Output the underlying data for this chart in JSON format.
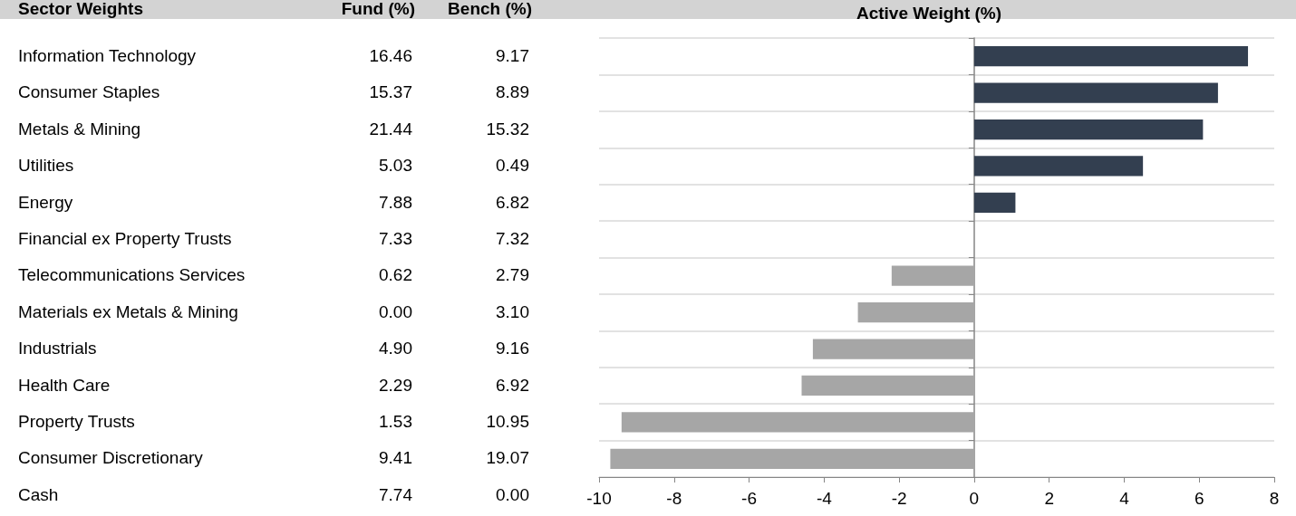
{
  "chart_data": [
    {
      "type": "other",
      "title": "Sector Weights",
      "categories": [
        "Information Technology",
        "Consumer Staples",
        "Metals & Mining",
        "Utilities",
        "Energy",
        "Financial ex Property Trusts",
        "Telecommunications Services",
        "Materials ex Metals & Mining",
        "Industrials",
        "Health Care",
        "Property Trusts",
        "Consumer Discretionary",
        "Cash"
      ],
      "series": [
        {
          "name": "Fund (%)",
          "values": [
            16.46,
            15.37,
            21.44,
            5.03,
            7.88,
            7.33,
            0.62,
            0.0,
            4.9,
            2.29,
            1.53,
            9.41,
            7.74
          ],
          "value_labels": [
            "16.46",
            "15.37",
            "21.44",
            "5.03",
            "7.88",
            "7.33",
            "0.62",
            "0.00",
            "4.90",
            "2.29",
            "1.53",
            "9.41",
            "7.74"
          ]
        },
        {
          "name": "Bench (%)",
          "values": [
            9.17,
            8.89,
            15.32,
            0.49,
            6.82,
            7.32,
            2.79,
            3.1,
            9.16,
            6.92,
            10.95,
            19.07,
            0.0
          ],
          "value_labels": [
            "9.17",
            "8.89",
            "15.32",
            "0.49",
            "6.82",
            "7.32",
            "2.79",
            "3.10",
            "9.16",
            "6.92",
            "10.95",
            "19.07",
            "0.00"
          ]
        }
      ]
    },
    {
      "type": "bar",
      "orientation": "horizontal",
      "title": "Active Weight (%)",
      "categories": [
        null,
        null,
        null,
        null,
        null,
        null,
        null,
        null,
        null,
        null,
        null,
        null
      ],
      "values": [
        7.3,
        6.5,
        6.1,
        4.5,
        1.1,
        0.0,
        -2.2,
        -3.1,
        -4.3,
        -4.6,
        -9.4,
        -9.7
      ],
      "colors": [
        "#333f50",
        "#333f50",
        "#333f50",
        "#333f50",
        "#333f50",
        "#a6a6a6",
        "#a6a6a6",
        "#a6a6a6",
        "#a6a6a6",
        "#a6a6a6",
        "#a6a6a6",
        "#a6a6a6"
      ],
      "xlim": [
        -10,
        8
      ],
      "xticks": [
        -10,
        -8,
        -6,
        -4,
        -2,
        0,
        2,
        4,
        6,
        8
      ],
      "grid": "y",
      "tick_labels": "x"
    }
  ]
}
